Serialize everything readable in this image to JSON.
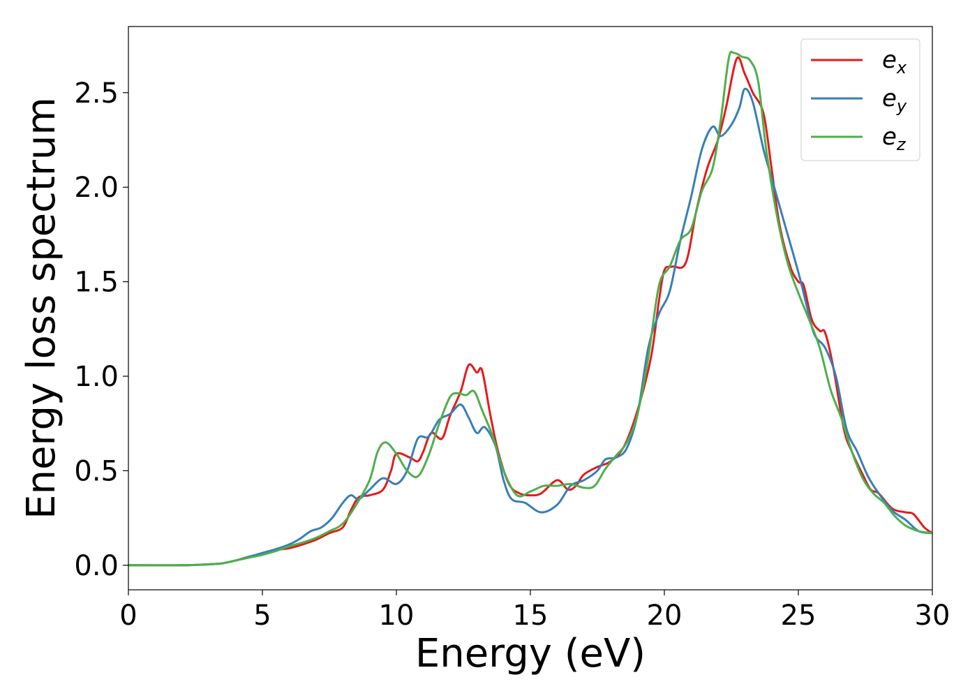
{
  "chart_data": {
    "type": "line",
    "title": "",
    "xlabel": "Energy (eV)",
    "ylabel": "Energy loss spectrum",
    "xlim": [
      0,
      30
    ],
    "ylim": [
      -0.13,
      2.85
    ],
    "xticks": [
      "0",
      "5",
      "10",
      "15",
      "20",
      "25",
      "30"
    ],
    "yticks": [
      "0.0",
      "0.5",
      "1.0",
      "1.5",
      "2.0",
      "2.5"
    ],
    "grid": false,
    "legend_position": "top-right",
    "series": [
      {
        "name": "e_x",
        "label_base": "e",
        "label_sub": "x",
        "color": "#e41a1c",
        "points": [
          [
            0,
            0
          ],
          [
            2,
            0.0
          ],
          [
            3,
            0.005
          ],
          [
            3.5,
            0.01
          ],
          [
            4,
            0.025
          ],
          [
            4.5,
            0.045
          ],
          [
            5,
            0.06
          ],
          [
            5.5,
            0.08
          ],
          [
            6,
            0.09
          ],
          [
            6.5,
            0.11
          ],
          [
            7,
            0.135
          ],
          [
            7.5,
            0.17
          ],
          [
            8,
            0.2
          ],
          [
            8.3,
            0.29
          ],
          [
            8.6,
            0.36
          ],
          [
            9,
            0.37
          ],
          [
            9.5,
            0.4
          ],
          [
            9.8,
            0.5
          ],
          [
            10,
            0.59
          ],
          [
            10.5,
            0.57
          ],
          [
            10.8,
            0.55
          ],
          [
            11,
            0.6
          ],
          [
            11.3,
            0.7
          ],
          [
            11.7,
            0.67
          ],
          [
            12,
            0.79
          ],
          [
            12.4,
            0.92
          ],
          [
            12.7,
            1.06
          ],
          [
            13,
            1.02
          ],
          [
            13.2,
            1.03
          ],
          [
            13.5,
            0.8
          ],
          [
            13.8,
            0.6
          ],
          [
            14.2,
            0.43
          ],
          [
            14.6,
            0.38
          ],
          [
            15,
            0.37
          ],
          [
            15.4,
            0.38
          ],
          [
            16,
            0.45
          ],
          [
            16.4,
            0.4
          ],
          [
            16.7,
            0.42
          ],
          [
            17,
            0.48
          ],
          [
            17.5,
            0.52
          ],
          [
            18,
            0.55
          ],
          [
            18.5,
            0.63
          ],
          [
            19,
            0.82
          ],
          [
            19.5,
            1.1
          ],
          [
            19.8,
            1.4
          ],
          [
            20,
            1.56
          ],
          [
            20.3,
            1.58
          ],
          [
            20.8,
            1.6
          ],
          [
            21.2,
            1.88
          ],
          [
            21.6,
            2.1
          ],
          [
            22,
            2.25
          ],
          [
            22.3,
            2.42
          ],
          [
            22.7,
            2.68
          ],
          [
            23,
            2.6
          ],
          [
            23.3,
            2.5
          ],
          [
            23.7,
            2.39
          ],
          [
            24,
            2.1
          ],
          [
            24.3,
            1.8
          ],
          [
            24.7,
            1.58
          ],
          [
            25,
            1.5
          ],
          [
            25.2,
            1.48
          ],
          [
            25.5,
            1.3
          ],
          [
            25.8,
            1.24
          ],
          [
            26,
            1.23
          ],
          [
            26.3,
            1.05
          ],
          [
            26.7,
            0.72
          ],
          [
            27,
            0.6
          ],
          [
            27.4,
            0.48
          ],
          [
            27.7,
            0.4
          ],
          [
            28,
            0.38
          ],
          [
            28.5,
            0.3
          ],
          [
            29,
            0.28
          ],
          [
            29.3,
            0.27
          ],
          [
            29.7,
            0.2
          ],
          [
            30,
            0.17
          ]
        ]
      },
      {
        "name": "e_y",
        "label_base": "e",
        "label_sub": "y",
        "color": "#377eb8",
        "points": [
          [
            0,
            0
          ],
          [
            2,
            0.0
          ],
          [
            3,
            0.005
          ],
          [
            3.5,
            0.01
          ],
          [
            4,
            0.025
          ],
          [
            4.5,
            0.045
          ],
          [
            5,
            0.065
          ],
          [
            5.5,
            0.085
          ],
          [
            6,
            0.11
          ],
          [
            6.4,
            0.14
          ],
          [
            6.8,
            0.18
          ],
          [
            7.2,
            0.2
          ],
          [
            7.6,
            0.25
          ],
          [
            8,
            0.33
          ],
          [
            8.3,
            0.37
          ],
          [
            8.6,
            0.35
          ],
          [
            9,
            0.4
          ],
          [
            9.5,
            0.46
          ],
          [
            10,
            0.43
          ],
          [
            10.4,
            0.5
          ],
          [
            10.8,
            0.67
          ],
          [
            11.2,
            0.68
          ],
          [
            11.6,
            0.77
          ],
          [
            12,
            0.8
          ],
          [
            12.4,
            0.85
          ],
          [
            12.7,
            0.78
          ],
          [
            13,
            0.7
          ],
          [
            13.3,
            0.73
          ],
          [
            13.7,
            0.63
          ],
          [
            14,
            0.45
          ],
          [
            14.3,
            0.35
          ],
          [
            14.8,
            0.33
          ],
          [
            15.4,
            0.28
          ],
          [
            16,
            0.32
          ],
          [
            16.5,
            0.42
          ],
          [
            17,
            0.45
          ],
          [
            17.5,
            0.5
          ],
          [
            17.8,
            0.56
          ],
          [
            18.2,
            0.57
          ],
          [
            18.6,
            0.62
          ],
          [
            19,
            0.8
          ],
          [
            19.4,
            1.15
          ],
          [
            19.8,
            1.33
          ],
          [
            20.2,
            1.45
          ],
          [
            20.6,
            1.72
          ],
          [
            21,
            1.95
          ],
          [
            21.4,
            2.2
          ],
          [
            21.8,
            2.32
          ],
          [
            22.1,
            2.27
          ],
          [
            22.5,
            2.33
          ],
          [
            22.8,
            2.42
          ],
          [
            23,
            2.52
          ],
          [
            23.3,
            2.45
          ],
          [
            23.7,
            2.2
          ],
          [
            24,
            2.05
          ],
          [
            24.5,
            1.8
          ],
          [
            25,
            1.55
          ],
          [
            25.3,
            1.38
          ],
          [
            25.6,
            1.22
          ],
          [
            26,
            1.15
          ],
          [
            26.4,
            1.0
          ],
          [
            26.8,
            0.72
          ],
          [
            27.2,
            0.6
          ],
          [
            27.6,
            0.47
          ],
          [
            28,
            0.38
          ],
          [
            28.5,
            0.29
          ],
          [
            29,
            0.24
          ],
          [
            29.5,
            0.18
          ],
          [
            30,
            0.17
          ]
        ]
      },
      {
        "name": "e_z",
        "label_base": "e",
        "label_sub": "z",
        "color": "#4daf4a",
        "points": [
          [
            0,
            0
          ],
          [
            2,
            0.0
          ],
          [
            3,
            0.005
          ],
          [
            3.5,
            0.01
          ],
          [
            4,
            0.025
          ],
          [
            4.5,
            0.04
          ],
          [
            5,
            0.055
          ],
          [
            5.5,
            0.075
          ],
          [
            6,
            0.1
          ],
          [
            6.5,
            0.12
          ],
          [
            7,
            0.145
          ],
          [
            7.5,
            0.18
          ],
          [
            8,
            0.22
          ],
          [
            8.5,
            0.32
          ],
          [
            9,
            0.45
          ],
          [
            9.3,
            0.6
          ],
          [
            9.6,
            0.65
          ],
          [
            10,
            0.59
          ],
          [
            10.4,
            0.5
          ],
          [
            10.8,
            0.47
          ],
          [
            11.2,
            0.58
          ],
          [
            11.6,
            0.75
          ],
          [
            12,
            0.89
          ],
          [
            12.3,
            0.91
          ],
          [
            12.6,
            0.9
          ],
          [
            12.9,
            0.92
          ],
          [
            13.2,
            0.82
          ],
          [
            13.6,
            0.68
          ],
          [
            14,
            0.5
          ],
          [
            14.5,
            0.37
          ],
          [
            15,
            0.39
          ],
          [
            15.5,
            0.42
          ],
          [
            16,
            0.42
          ],
          [
            16.5,
            0.43
          ],
          [
            17,
            0.41
          ],
          [
            17.4,
            0.42
          ],
          [
            17.8,
            0.51
          ],
          [
            18.2,
            0.58
          ],
          [
            18.6,
            0.65
          ],
          [
            19,
            0.8
          ],
          [
            19.4,
            1.1
          ],
          [
            19.8,
            1.48
          ],
          [
            20.2,
            1.58
          ],
          [
            20.6,
            1.72
          ],
          [
            21,
            1.78
          ],
          [
            21.4,
            1.98
          ],
          [
            21.8,
            2.1
          ],
          [
            22.1,
            2.35
          ],
          [
            22.4,
            2.68
          ],
          [
            22.6,
            2.71
          ],
          [
            22.9,
            2.69
          ],
          [
            23.2,
            2.67
          ],
          [
            23.5,
            2.56
          ],
          [
            23.8,
            2.2
          ],
          [
            24.2,
            1.85
          ],
          [
            24.6,
            1.6
          ],
          [
            25,
            1.44
          ],
          [
            25.4,
            1.3
          ],
          [
            25.8,
            1.15
          ],
          [
            26.2,
            0.93
          ],
          [
            26.6,
            0.78
          ],
          [
            27,
            0.6
          ],
          [
            27.4,
            0.46
          ],
          [
            27.8,
            0.38
          ],
          [
            28.2,
            0.33
          ],
          [
            28.6,
            0.26
          ],
          [
            29,
            0.21
          ],
          [
            29.5,
            0.18
          ],
          [
            30,
            0.17
          ]
        ]
      }
    ]
  }
}
